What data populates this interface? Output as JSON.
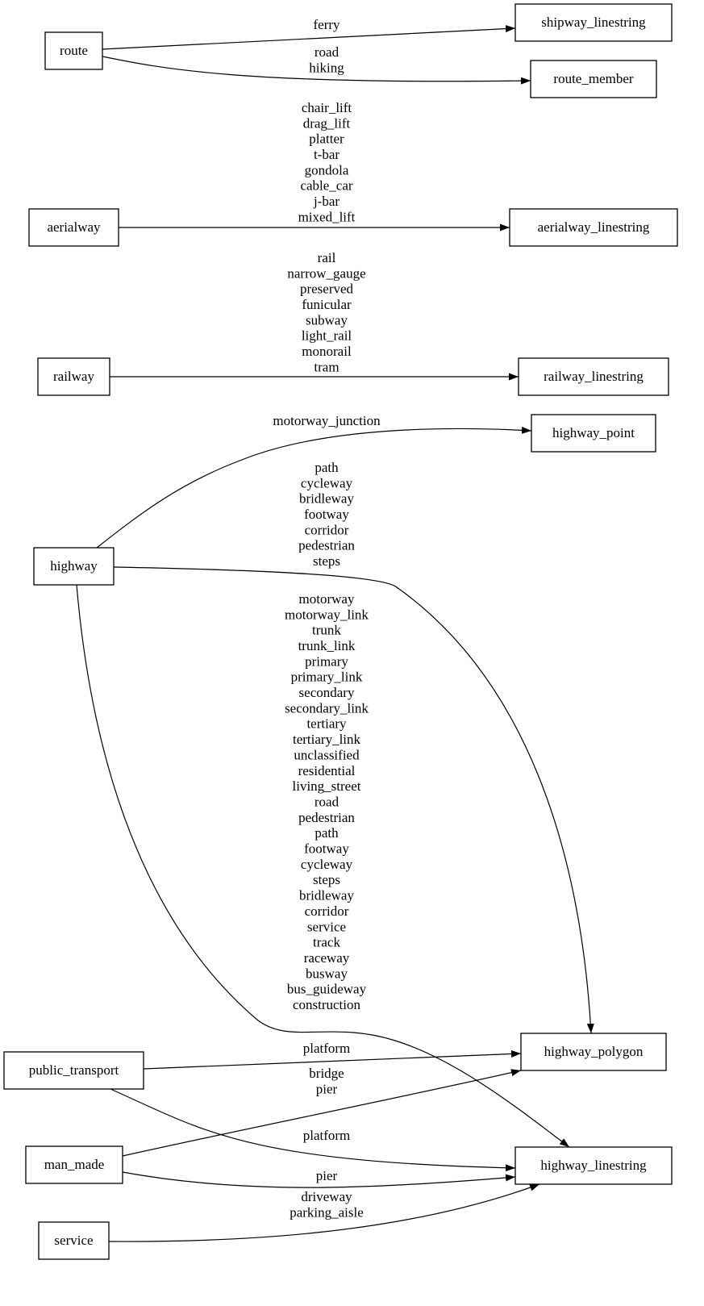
{
  "nodes": [
    "route",
    "aerialway",
    "railway",
    "highway",
    "public_transport",
    "man_made",
    "service",
    "shipway_linestring",
    "route_member",
    "aerialway_linestring",
    "railway_linestring",
    "highway_point",
    "highway_polygon",
    "highway_linestring"
  ],
  "edges": [
    {
      "from": "route",
      "to": "shipway_linestring",
      "labels": [
        "ferry"
      ]
    },
    {
      "from": "route",
      "to": "route_member",
      "labels": [
        "road",
        "hiking"
      ]
    },
    {
      "from": "aerialway",
      "to": "aerialway_linestring",
      "labels": [
        "chair_lift",
        "drag_lift",
        "platter",
        "t-bar",
        "gondola",
        "cable_car",
        "j-bar",
        "mixed_lift"
      ]
    },
    {
      "from": "railway",
      "to": "railway_linestring",
      "labels": [
        "rail",
        "narrow_gauge",
        "preserved",
        "funicular",
        "subway",
        "light_rail",
        "monorail",
        "tram"
      ]
    },
    {
      "from": "highway",
      "to": "highway_point",
      "labels": [
        "motorway_junction"
      ]
    },
    {
      "from": "highway",
      "to": "highway_polygon",
      "labels": [
        "path",
        "cycleway",
        "bridleway",
        "footway",
        "corridor",
        "pedestrian",
        "steps"
      ]
    },
    {
      "from": "highway",
      "to": "highway_linestring",
      "labels": [
        "motorway",
        "motorway_link",
        "trunk",
        "trunk_link",
        "primary",
        "primary_link",
        "secondary",
        "secondary_link",
        "tertiary",
        "tertiary_link",
        "unclassified",
        "residential",
        "living_street",
        "road",
        "pedestrian",
        "path",
        "footway",
        "cycleway",
        "steps",
        "bridleway",
        "corridor",
        "service",
        "track",
        "raceway",
        "busway",
        "bus_guideway",
        "construction"
      ]
    },
    {
      "from": "public_transport",
      "to": "highway_polygon",
      "labels": [
        "platform"
      ]
    },
    {
      "from": "public_transport",
      "to": "highway_linestring",
      "labels": [
        "platform"
      ]
    },
    {
      "from": "man_made",
      "to": "highway_polygon",
      "labels": [
        "bridge",
        "pier"
      ]
    },
    {
      "from": "man_made",
      "to": "highway_linestring",
      "labels": [
        "pier"
      ]
    },
    {
      "from": "service",
      "to": "highway_linestring",
      "labels": [
        "driveway",
        "parking_aisle"
      ]
    }
  ]
}
